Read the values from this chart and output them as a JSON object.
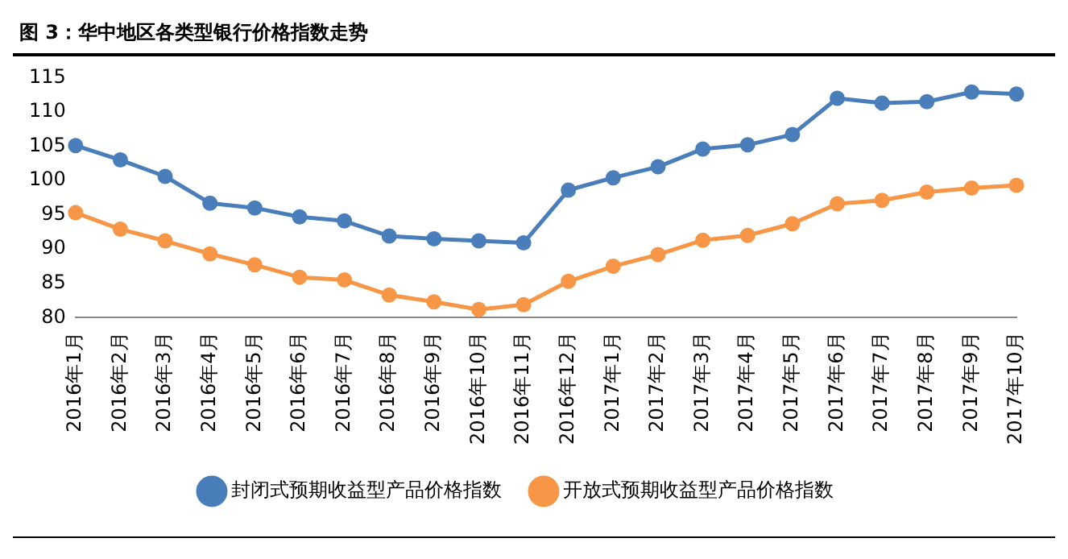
{
  "chart_data": {
    "type": "line",
    "title": "图 3：华中地区各类型银行价格指数走势",
    "categories": [
      "2016年1月",
      "2016年2月",
      "2016年3月",
      "2016年4月",
      "2016年5月",
      "2016年6月",
      "2016年7月",
      "2016年8月",
      "2016年9月",
      "2016年10月",
      "2016年11月",
      "2016年12月",
      "2017年1月",
      "2017年2月",
      "2017年3月",
      "2017年4月",
      "2017年5月",
      "2017年6月",
      "2017年7月",
      "2017年8月",
      "2017年9月",
      "2017年10月"
    ],
    "series": [
      {
        "name": "封闭式预期收益型产品价格指数",
        "color": "#4a7ebb",
        "values": [
          105.1,
          103,
          100.6,
          96.7,
          96,
          94.7,
          94.1,
          91.9,
          91.5,
          91.2,
          90.9,
          98.6,
          100.4,
          102,
          104.6,
          105.2,
          106.7,
          112,
          111.3,
          111.5,
          112.9,
          112.6
        ]
      },
      {
        "name": "开放式预期收益型产品价格指数",
        "color": "#f79646",
        "values": [
          95.3,
          92.9,
          91.2,
          89.3,
          87.7,
          85.9,
          85.5,
          83.3,
          82.3,
          81.2,
          81.9,
          85.3,
          87.5,
          89.2,
          91.3,
          92,
          93.7,
          96.6,
          97.1,
          98.3,
          98.9,
          99.3
        ]
      }
    ],
    "ylim": [
      80,
      115
    ],
    "yticks": [
      80,
      85,
      90,
      95,
      100,
      105,
      110,
      115
    ],
    "grid": false,
    "legend": "bottom",
    "marker": "circle",
    "line_style": "solid"
  }
}
